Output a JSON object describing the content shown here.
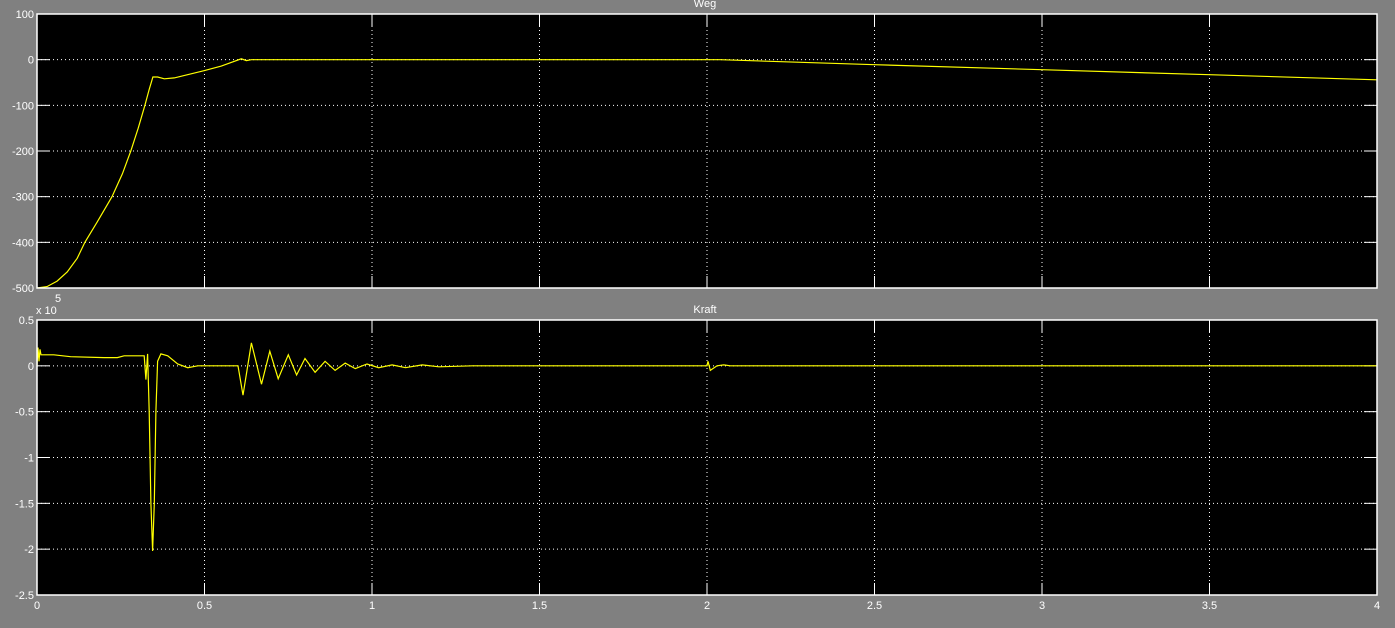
{
  "chart_data": [
    {
      "type": "line",
      "title": "Weg",
      "xlim": [
        0,
        4
      ],
      "ylim": [
        -500,
        100
      ],
      "xticks": [
        0,
        0.5,
        1,
        1.5,
        2,
        2.5,
        3,
        3.5,
        4
      ],
      "yticks": [
        100,
        0,
        -100,
        -200,
        -300,
        -400,
        -500
      ],
      "ytick_labels": [
        "100",
        "0",
        "-100",
        "-200",
        "-300",
        "-400",
        "-500"
      ],
      "show_xtick_labels": false,
      "grid": true,
      "background": "#000000",
      "line_color": "#ffff00",
      "series": [
        {
          "points": [
            [
              0,
              -500
            ],
            [
              0.03,
              -497
            ],
            [
              0.06,
              -485
            ],
            [
              0.09,
              -465
            ],
            [
              0.12,
              -435
            ],
            [
              0.143,
              -400
            ],
            [
              0.18,
              -355
            ],
            [
              0.224,
              -300
            ],
            [
              0.255,
              -250
            ],
            [
              0.28,
              -200
            ],
            [
              0.302,
              -150
            ],
            [
              0.322,
              -100
            ],
            [
              0.335,
              -65
            ],
            [
              0.346,
              -38
            ],
            [
              0.36,
              -38
            ],
            [
              0.38,
              -42
            ],
            [
              0.41,
              -40
            ],
            [
              0.5,
              -24
            ],
            [
              0.55,
              -14
            ],
            [
              0.61,
              2
            ],
            [
              0.625,
              -2
            ],
            [
              0.64,
              0
            ],
            [
              1.0,
              0
            ],
            [
              1.5,
              0
            ],
            [
              2.04,
              0
            ],
            [
              2.5,
              -11
            ],
            [
              3,
              -22
            ],
            [
              3.5,
              -33
            ],
            [
              4,
              -44
            ]
          ]
        }
      ]
    },
    {
      "type": "line",
      "title": "Kraft",
      "xlim": [
        0,
        4
      ],
      "ylim": [
        -2.5,
        0.5
      ],
      "y_multiplier": "x 10",
      "y_exponent": "5",
      "xticks": [
        0,
        0.5,
        1,
        1.5,
        2,
        2.5,
        3,
        3.5,
        4
      ],
      "xtick_labels": [
        "0",
        "0.5",
        "1",
        "1.5",
        "2",
        "2.5",
        "3",
        "3.5",
        "4"
      ],
      "yticks": [
        0.5,
        0,
        -0.5,
        -1,
        -1.5,
        -2,
        -2.5
      ],
      "ytick_labels": [
        "0.5",
        "0",
        "-0.5",
        "-1",
        "-1.5",
        "-2",
        "-2.5"
      ],
      "grid": true,
      "background": "#000000",
      "line_color": "#ffff00",
      "series": [
        {
          "points": [
            [
              0,
              0
            ],
            [
              0.003,
              0.2
            ],
            [
              0.006,
              0.05
            ],
            [
              0.009,
              0.18
            ],
            [
              0.012,
              0.12
            ],
            [
              0.05,
              0.12
            ],
            [
              0.1,
              0.1
            ],
            [
              0.2,
              0.09
            ],
            [
              0.24,
              0.09
            ],
            [
              0.26,
              0.11
            ],
            [
              0.32,
              0.11
            ],
            [
              0.325,
              -0.15
            ],
            [
              0.33,
              0.13
            ],
            [
              0.335,
              -0.5
            ],
            [
              0.34,
              -1.5
            ],
            [
              0.345,
              -2.02
            ],
            [
              0.35,
              -1.5
            ],
            [
              0.355,
              -0.5
            ],
            [
              0.36,
              0.05
            ],
            [
              0.37,
              0.13
            ],
            [
              0.39,
              0.11
            ],
            [
              0.42,
              0.02
            ],
            [
              0.45,
              -0.02
            ],
            [
              0.48,
              0
            ],
            [
              0.6,
              0
            ],
            [
              0.615,
              -0.32
            ],
            [
              0.64,
              0.25
            ],
            [
              0.67,
              -0.2
            ],
            [
              0.695,
              0.16
            ],
            [
              0.72,
              -0.14
            ],
            [
              0.75,
              0.12
            ],
            [
              0.775,
              -0.1
            ],
            [
              0.8,
              0.08
            ],
            [
              0.83,
              -0.07
            ],
            [
              0.86,
              0.05
            ],
            [
              0.89,
              -0.05
            ],
            [
              0.92,
              0.03
            ],
            [
              0.95,
              -0.03
            ],
            [
              0.985,
              0.02
            ],
            [
              1.02,
              -0.02
            ],
            [
              1.06,
              0.01
            ],
            [
              1.1,
              -0.02
            ],
            [
              1.15,
              0.01
            ],
            [
              1.2,
              -0.01
            ],
            [
              1.3,
              0
            ],
            [
              2.0,
              0
            ],
            [
              2.003,
              0.05
            ],
            [
              2.01,
              -0.05
            ],
            [
              2.03,
              0.0
            ],
            [
              2.05,
              0.01
            ],
            [
              2.07,
              0
            ],
            [
              4,
              0
            ]
          ]
        }
      ]
    }
  ]
}
